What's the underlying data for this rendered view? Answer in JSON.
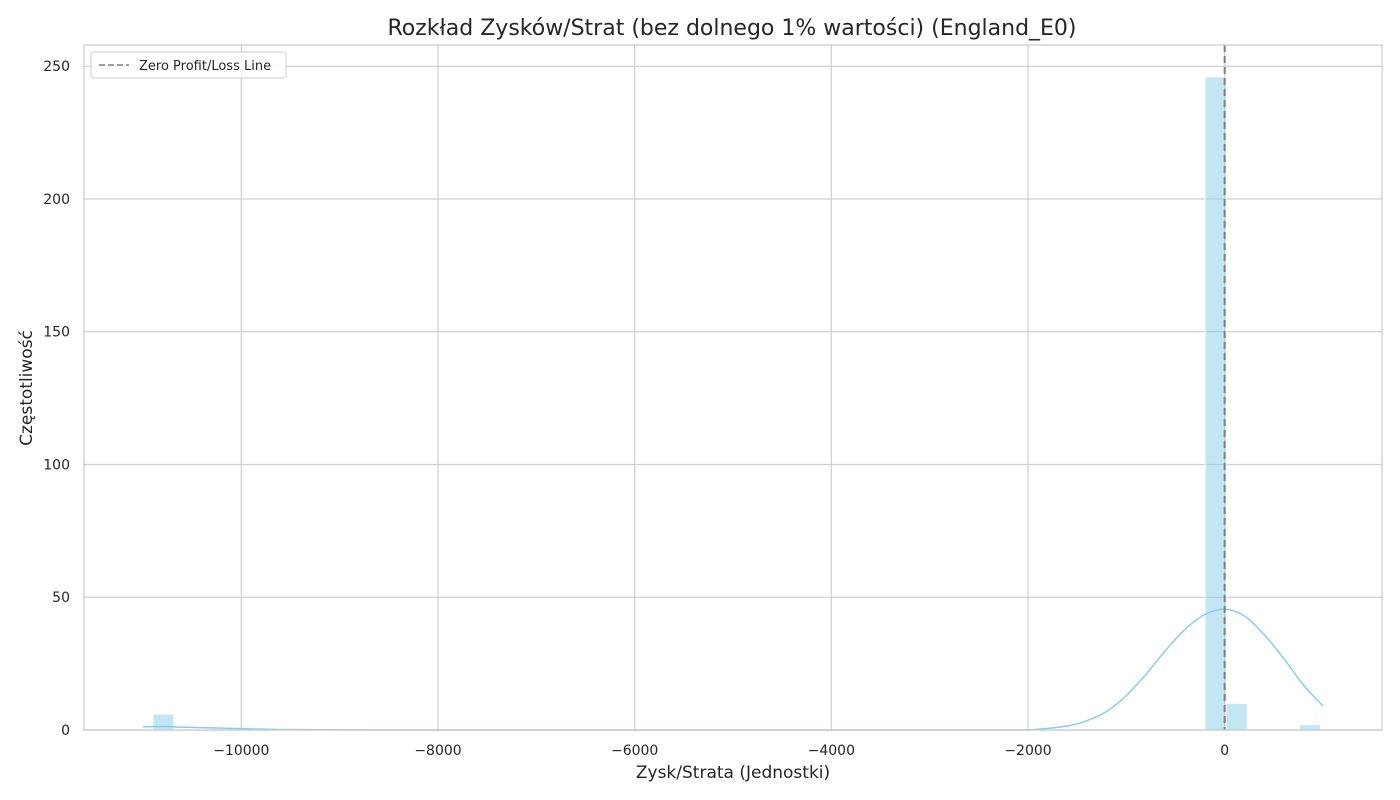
{
  "chart_data": {
    "type": "bar",
    "title": "Rozkład Zysków/Strat (bez dolnego 1% wartości) (England_E0)",
    "xlabel": "Zysk/Strata (Jednostki)",
    "ylabel": "Częstotliwość",
    "xlim": [
      -11600,
      1600
    ],
    "ylim": [
      0,
      258
    ],
    "xticks": [
      -10000,
      -8000,
      -6000,
      -4000,
      -2000,
      0
    ],
    "xtick_labels": [
      "−10000",
      "−8000",
      "−6000",
      "−4000",
      "−2000",
      "0"
    ],
    "yticks": [
      0,
      50,
      100,
      150,
      200,
      250
    ],
    "ytick_labels": [
      "0",
      "50",
      "100",
      "150",
      "200",
      "250"
    ],
    "grid": true,
    "legend_position": "top-left",
    "legend": [
      {
        "label": "Zero Profit/Loss Line",
        "style": "dashed",
        "color": "#7f7f7f"
      }
    ],
    "bar_color": "#87ceeb",
    "kde_color": "#87ceeb",
    "bins": [
      {
        "x0": -10900,
        "x1": -10685,
        "count": 6
      },
      {
        "x0": -200,
        "x1": 15,
        "count": 246
      },
      {
        "x0": 15,
        "x1": 230,
        "count": 10
      },
      {
        "x0": 760,
        "x1": 975,
        "count": 2
      }
    ],
    "kde": [
      {
        "x": -11000,
        "y": 1.2
      },
      {
        "x": -10800,
        "y": 1.3
      },
      {
        "x": -10600,
        "y": 1.1
      },
      {
        "x": -10300,
        "y": 0.8
      },
      {
        "x": -10000,
        "y": 0.5
      },
      {
        "x": -9600,
        "y": 0.2
      },
      {
        "x": -9000,
        "y": 0.05
      },
      {
        "x": -8000,
        "y": 0
      },
      {
        "x": -4000,
        "y": 0
      },
      {
        "x": -2200,
        "y": 0
      },
      {
        "x": -1900,
        "y": 0.3
      },
      {
        "x": -1600,
        "y": 1.5
      },
      {
        "x": -1400,
        "y": 3.5
      },
      {
        "x": -1200,
        "y": 7
      },
      {
        "x": -1000,
        "y": 13
      },
      {
        "x": -800,
        "y": 21
      },
      {
        "x": -600,
        "y": 30
      },
      {
        "x": -400,
        "y": 38
      },
      {
        "x": -200,
        "y": 43.5
      },
      {
        "x": 0,
        "y": 45.5
      },
      {
        "x": 200,
        "y": 43
      },
      {
        "x": 400,
        "y": 36
      },
      {
        "x": 600,
        "y": 27
      },
      {
        "x": 800,
        "y": 17
      },
      {
        "x": 1000,
        "y": 9
      }
    ],
    "zero_line_x": 0
  }
}
